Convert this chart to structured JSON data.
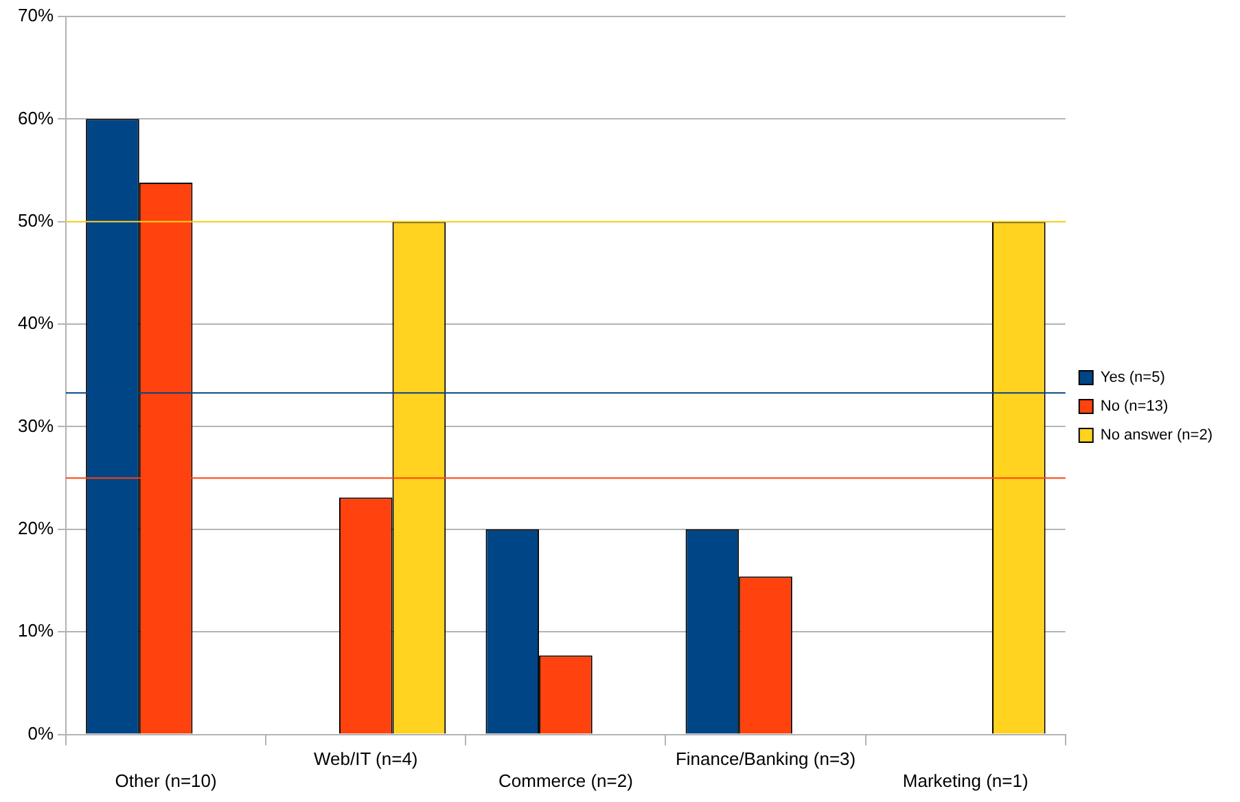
{
  "chart_data": {
    "type": "bar",
    "categories": [
      "Other (n=10)",
      "Web/IT (n=4)",
      "Commerce (n=2)",
      "Finance/Banking (n=3)",
      "Marketing (n=1)"
    ],
    "series": [
      {
        "name": "Yes (n=5)",
        "color": "#004586",
        "values": [
          60,
          0,
          20,
          20,
          0
        ]
      },
      {
        "name": "No (n=13)",
        "color": "#ff420e",
        "values": [
          53.8,
          23.1,
          7.7,
          15.4,
          0
        ]
      },
      {
        "name": "No answer (n=2)",
        "color": "#ffd320",
        "values": [
          0,
          50,
          0,
          0,
          50
        ]
      }
    ],
    "ylim": [
      0,
      70
    ],
    "yticks": [
      {
        "value": 0,
        "label": "0%"
      },
      {
        "value": 10,
        "label": "10%"
      },
      {
        "value": 20,
        "label": "20%"
      },
      {
        "value": 30,
        "label": "30%"
      },
      {
        "value": 40,
        "label": "40%"
      },
      {
        "value": 50,
        "label": "50%"
      },
      {
        "value": 60,
        "label": "60%"
      },
      {
        "value": 70,
        "label": "70%"
      }
    ],
    "ref_lines": [
      {
        "axis": "y",
        "value": 50,
        "color": "#ffd320"
      },
      {
        "axis": "y",
        "value": 33.3,
        "color": "#004586"
      },
      {
        "axis": "y",
        "value": 25,
        "color": "#ff420e"
      }
    ],
    "grid": "y",
    "legend": "right"
  }
}
